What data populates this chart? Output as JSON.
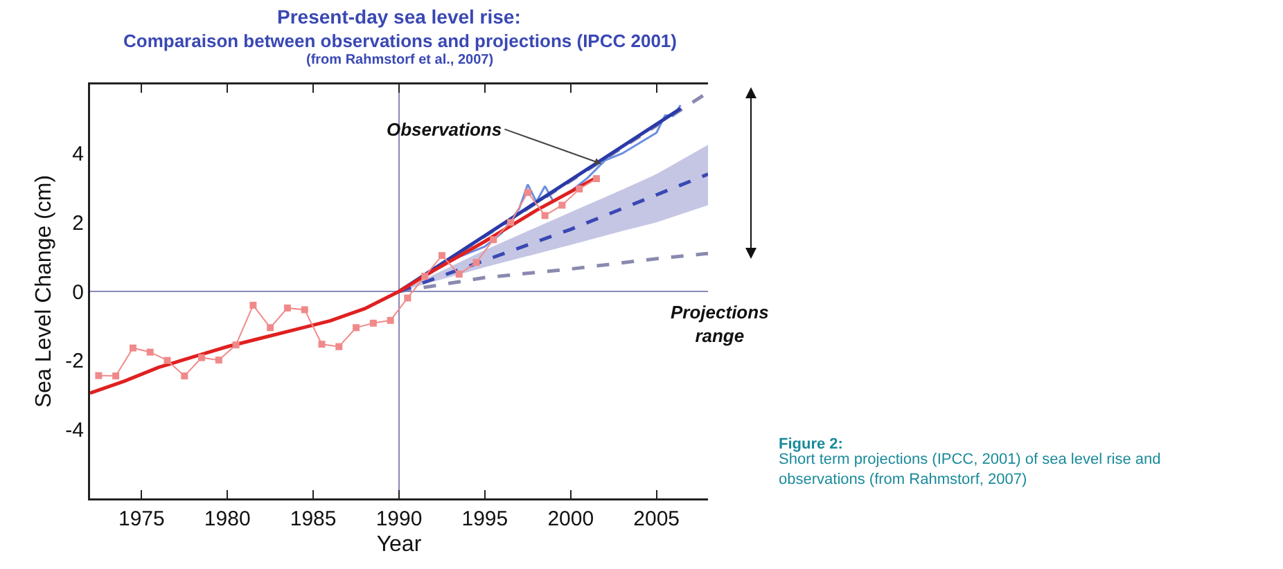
{
  "chart_data": {
    "type": "line",
    "title": "Present-day sea level rise:",
    "subtitle": "Comparaison between observations and projections (IPCC 2001)",
    "xlabel": "Year",
    "ylabel": "Sea Level Change (cm)",
    "annotations": [
      "(from Rahmstorf et al., 2007)",
      {
        "text": "Observations",
        "x": 2001.8,
        "y": 3.7
      },
      "Projections range",
      "Figure 2:",
      "Short term projections (IPCC, 2001) of sea level rise and observations (from Rahmstorf, 2007)"
    ],
    "xlim": [
      1972,
      2008
    ],
    "xticks": [
      1975,
      1980,
      1985,
      1990,
      1995,
      2000,
      2005
    ],
    "ylim": [
      -6,
      6
    ],
    "yticks": [
      -4,
      -2,
      0,
      2,
      4
    ],
    "ref_lines": [
      {
        "axis": "x",
        "value": 1990,
        "color": "#8888bb"
      },
      {
        "axis": "y",
        "value": 0,
        "color": "#8888bb"
      }
    ],
    "series": [
      {
        "color": "#8a8ab0",
        "line_style": "dashed",
        "marker": "none",
        "x": [
          1990,
          2008
        ],
        "values": [
          0,
          5.77
        ]
      },
      {
        "color": "#8a8ab0",
        "line_style": "dashed",
        "marker": "none",
        "x": [
          1990,
          1995,
          2000,
          2005,
          2008
        ],
        "values": [
          0,
          0.4,
          0.65,
          0.95,
          1.1
        ]
      },
      {
        "color": "#3a48b4",
        "line_style": "dashed",
        "marker": "none",
        "x": [
          1990,
          1995,
          2000,
          2003,
          2005,
          2008
        ],
        "values": [
          0,
          0.9,
          1.8,
          2.4,
          2.8,
          3.4
        ],
        "lower": [
          0,
          0.7,
          1.35,
          1.75,
          2.0,
          2.5
        ],
        "upper": [
          0,
          1.2,
          2.3,
          2.95,
          3.4,
          4.25
        ]
      },
      {
        "color": "#f08a8a",
        "line_style": "solid",
        "marker": "square",
        "x": [
          1972.5,
          1973.5,
          1974.5,
          1975.5,
          1976.5,
          1977.5,
          1978.5,
          1979.5,
          1980.5,
          1981.5,
          1982.5,
          1983.5,
          1984.5,
          1985.5,
          1986.5,
          1987.5,
          1988.5,
          1989.5,
          1990.5,
          1991.5,
          1992.5,
          1993.5,
          1994.5,
          1995.5,
          1996.5,
          1997.5,
          1998.5,
          1999.5,
          2000.5,
          2001.5
        ],
        "values": [
          -2.44,
          -2.45,
          -1.64,
          -1.76,
          -2.0,
          -2.45,
          -1.92,
          -1.99,
          -1.55,
          -0.4,
          -1.05,
          -0.48,
          -0.53,
          -1.53,
          -1.6,
          -1.05,
          -0.92,
          -0.84,
          -0.19,
          0.44,
          1.04,
          0.5,
          0.84,
          1.5,
          2.0,
          2.87,
          2.2,
          2.5,
          2.97,
          3.27
        ]
      },
      {
        "color": "#6a8ee0",
        "line_style": "solid",
        "marker": "none",
        "x": [
          1993,
          1994,
          1995,
          1996,
          1997,
          1997.5,
          1998,
          1998.5,
          1999,
          2000,
          2001,
          2002,
          2003,
          2004,
          2005,
          2005.5,
          2006,
          2006.4
        ],
        "values": [
          0.9,
          1.1,
          1.3,
          1.7,
          2.4,
          3.1,
          2.6,
          3.05,
          2.6,
          2.9,
          3.3,
          3.8,
          4.0,
          4.3,
          4.6,
          5.1,
          5.1,
          5.4
        ]
      },
      {
        "color": "#2a3aa8",
        "line_style": "solid",
        "marker": "none",
        "x": [
          1990,
          2006.4
        ],
        "values": [
          0,
          5.3
        ]
      },
      {
        "color": "#e02020",
        "line_style": "solid",
        "marker": "none",
        "x": [
          1972,
          1974,
          1976,
          1978,
          1980,
          1982,
          1984,
          1986,
          1988,
          1990,
          1992,
          1995,
          1998,
          2001.4
        ],
        "values": [
          -2.95,
          -2.6,
          -2.2,
          -1.9,
          -1.6,
          -1.35,
          -1.1,
          -0.85,
          -0.5,
          0,
          0.6,
          1.45,
          2.35,
          3.27
        ]
      }
    ]
  }
}
